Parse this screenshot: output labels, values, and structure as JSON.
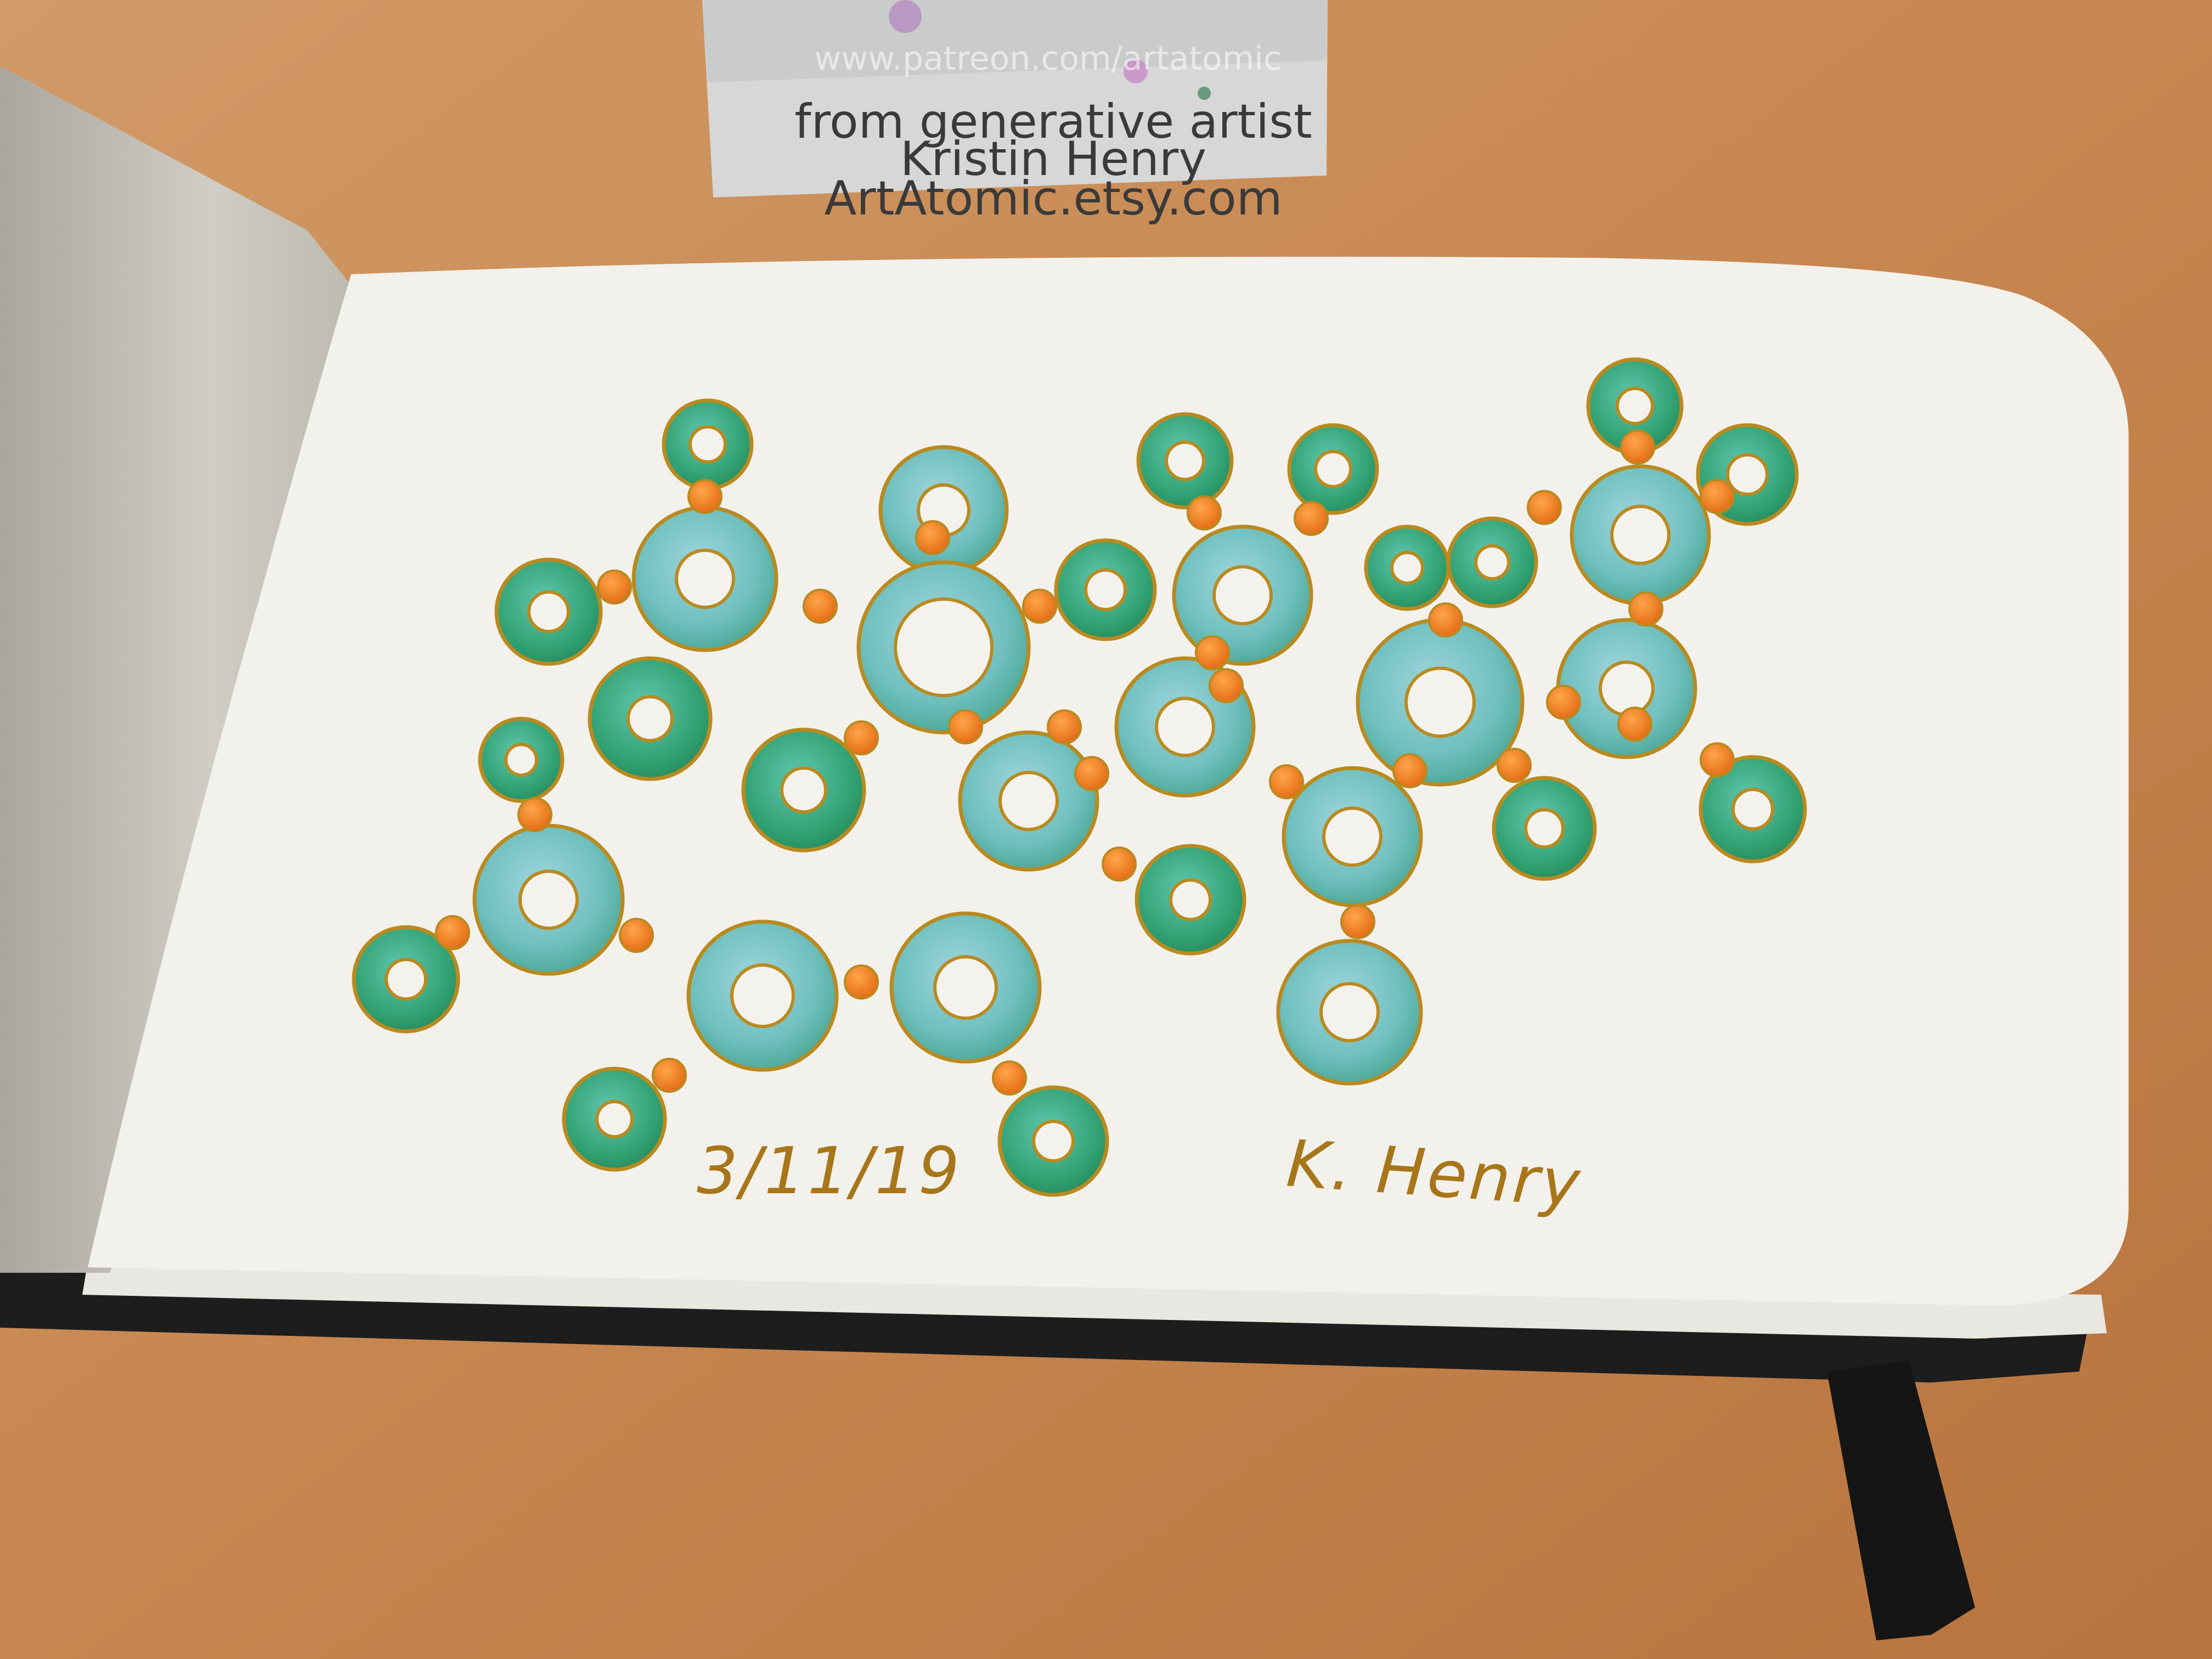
{
  "card": {
    "obscured_line": "www.patreon.com/artatomic",
    "line1": "from generative artist",
    "line2": "Kristin Henry",
    "line3": "ArtAtomic.etsy.com"
  },
  "painting": {
    "date": "3/11/19",
    "signature": "K. Henry"
  },
  "colors": {
    "table": "#c98a55",
    "paper": "#f4f2ec",
    "ring_teal": "#4fb5a8",
    "ring_green": "#2f9a6a",
    "ring_light": "#7fc4c8",
    "connector_orange": "#ec7a1e",
    "gold_outline": "#b98a20",
    "binding": "#1c1c1c",
    "card": "#d8d9d8"
  },
  "icons": [
    "molecule-ring-icon",
    "connector-dot-icon",
    "bookmark-ribbon-icon"
  ]
}
